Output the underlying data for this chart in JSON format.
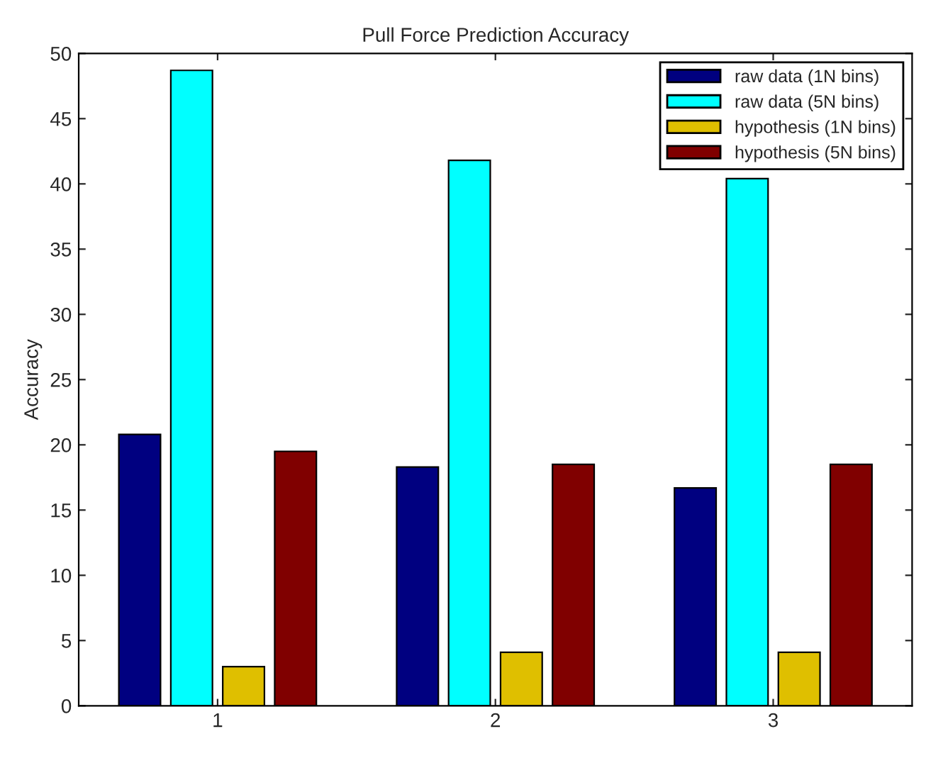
{
  "chart_data": {
    "type": "bar",
    "title": "Pull Force Prediction Accuracy",
    "ylabel": "Accuracy",
    "categories": [
      "1",
      "2",
      "3"
    ],
    "series": [
      {
        "name": "raw data (1N bins)",
        "color": "#000080",
        "values": [
          20.8,
          18.3,
          16.7
        ]
      },
      {
        "name": "raw data (5N bins)",
        "color": "#00ffff",
        "values": [
          48.7,
          41.8,
          40.4
        ]
      },
      {
        "name": "hypothesis (1N bins)",
        "color": "#dfbf00",
        "values": [
          3.0,
          4.1,
          4.1
        ]
      },
      {
        "name": "hypothesis (5N bins)",
        "color": "#800000",
        "values": [
          19.5,
          18.5,
          18.5
        ]
      }
    ],
    "ylim": [
      0,
      50
    ],
    "yticks": [
      0,
      5,
      10,
      15,
      20,
      25,
      30,
      35,
      40,
      45,
      50
    ],
    "grid": false,
    "legend": "top right"
  }
}
